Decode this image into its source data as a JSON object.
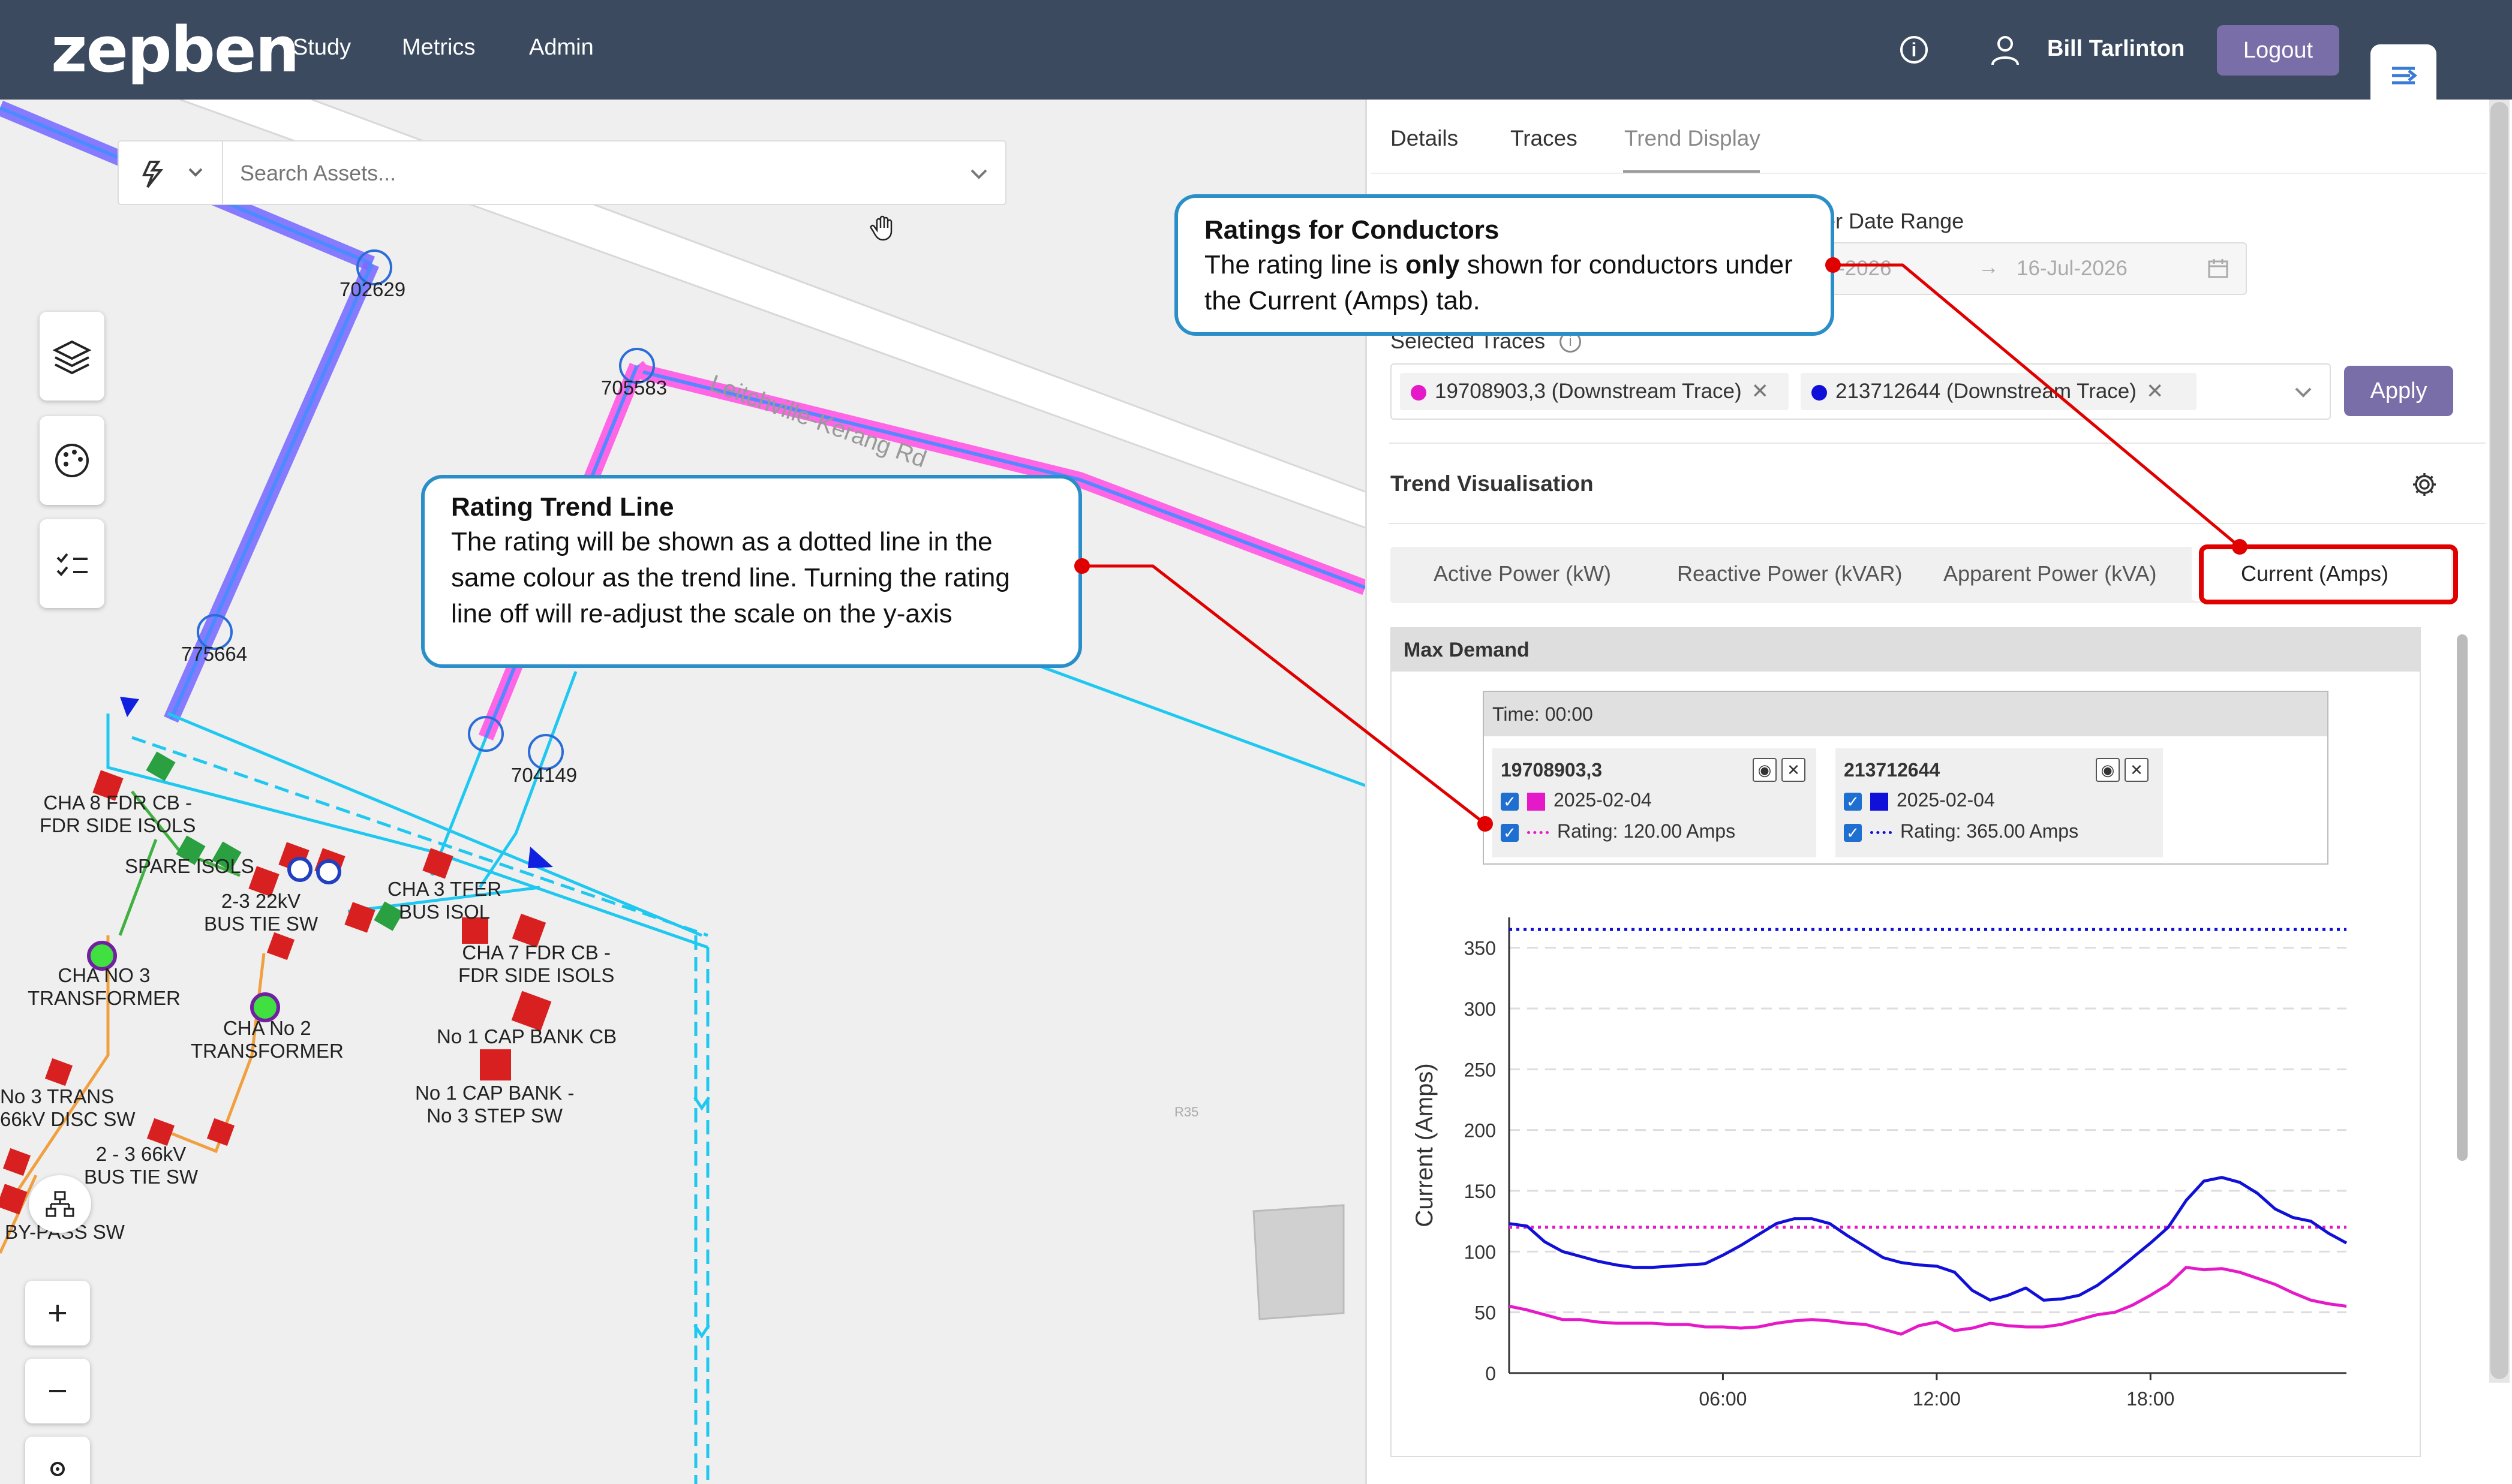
{
  "app": {
    "logo": "zepben",
    "nav": [
      "Study",
      "Metrics",
      "Admin"
    ],
    "user": "Bill Tarlinton",
    "logout_label": "Logout"
  },
  "map": {
    "search_placeholder": "Search Assets...",
    "road_name": "Leitchville-Kerang Rd",
    "labels": {
      "n702629": "702629",
      "n705583": "705583",
      "n775664": "775664",
      "n704149": "704149",
      "cha8": "CHA 8 FDR CB -\nFDR SIDE ISOLS",
      "spare": "SPARE ISOLS",
      "bus22": "2-3 22kV\nBUS TIE SW",
      "cha3tfer": "CHA 3 TFER\nBUS ISOL",
      "cha7": "CHA 7 FDR CB -\nFDR SIDE ISOLS",
      "chano3": "CHA NO 3\nTRANSFORMER",
      "chano2": "CHA No 2\nTRANSFORMER",
      "cap1": "No 1 CAP BANK CB",
      "cap1step": "No 1 CAP BANK -\nNo 3 STEP SW",
      "no3trans": "No 3 TRANS\n66kV DISC SW",
      "bus66": "2 - 3 66kV\nBUS TIE SW",
      "bypass": "BY-PASS SW",
      "r35": "R35"
    }
  },
  "panel": {
    "tabs": [
      "Details",
      "Traces",
      "Trend Display"
    ],
    "date_range_label": "er Date Range",
    "date_start": "-2026",
    "date_end": "16-Jul-2026",
    "selected_traces_label": "Selected Traces",
    "traces": [
      {
        "label": "19708903,3 (Downstream Trace)",
        "color": "#e619c8"
      },
      {
        "label": "213712644 (Downstream Trace)",
        "color": "#1010d8"
      }
    ],
    "apply_label": "Apply",
    "trend_vis_label": "Trend Visualisation",
    "metric_tabs": [
      "Active Power (kW)",
      "Reactive Power (kVAR)",
      "Apparent Power (kVA)",
      "Current (Amps)"
    ],
    "max_demand_label": "Max Demand",
    "tooltip": {
      "time": "Time: 00:00",
      "cards": [
        {
          "name": "19708903,3",
          "date": "2025-02-04",
          "rating": "Rating: 120.00 Amps",
          "color": "#e619c8"
        },
        {
          "name": "213712644",
          "date": "2025-02-04",
          "rating": "Rating: 365.00 Amps",
          "color": "#1010d8"
        }
      ]
    }
  },
  "callouts": {
    "ratings_title": "Ratings for Conductors",
    "ratings_body_1": "The rating line is ",
    "ratings_body_bold": "only",
    "ratings_body_2": " shown for conductors under the Current (Amps) tab.",
    "trend_title": "Rating Trend Line",
    "trend_body": "The rating will be shown as a dotted line in the same colour as the trend line. Turning the rating line off will re-adjust the scale on the y-axis"
  },
  "chart_data": {
    "type": "line",
    "ylabel": "Current (Amps)",
    "xlabel": "",
    "ylim": [
      0,
      375
    ],
    "yticks": [
      0,
      50,
      100,
      150,
      200,
      250,
      300,
      350
    ],
    "xticks": [
      {
        "hour": 6,
        "label": "06:00"
      },
      {
        "hour": 12,
        "label": "12:00"
      },
      {
        "hour": 18,
        "label": "18:00"
      }
    ],
    "x_hours": [
      0,
      0.5,
      1,
      1.5,
      2,
      2.5,
      3,
      3.5,
      4,
      4.5,
      5,
      5.5,
      6,
      6.5,
      7,
      7.5,
      8,
      8.5,
      9,
      9.5,
      10,
      10.5,
      11,
      11.5,
      12,
      12.5,
      13,
      13.5,
      14,
      14.5,
      15,
      15.5,
      16,
      16.5,
      17,
      17.5,
      18,
      18.5,
      19,
      19.5,
      20,
      20.5,
      21,
      21.5,
      22,
      22.5,
      23,
      23.5
    ],
    "series": [
      {
        "name": "19708903,3",
        "color": "#e619c8",
        "rating": 120,
        "values": [
          55,
          52,
          48,
          44,
          44,
          42,
          41,
          41,
          41,
          40,
          40,
          38,
          38,
          37,
          38,
          41,
          43,
          44,
          43,
          41,
          40,
          36,
          32,
          39,
          42,
          35,
          37,
          41,
          39,
          38,
          38,
          40,
          44,
          48,
          50,
          56,
          64,
          73,
          87,
          85,
          86,
          83,
          78,
          73,
          66,
          60,
          57,
          55
        ]
      },
      {
        "name": "213712644",
        "color": "#1010d8",
        "rating": 365,
        "values": [
          123,
          121,
          108,
          100,
          96,
          92,
          89,
          87,
          87,
          88,
          89,
          90,
          97,
          105,
          114,
          123,
          127,
          127,
          123,
          113,
          104,
          95,
          91,
          89,
          88,
          83,
          68,
          60,
          64,
          70,
          60,
          61,
          64,
          72,
          83,
          95,
          107,
          120,
          142,
          158,
          161,
          157,
          148,
          135,
          128,
          125,
          115,
          107
        ]
      }
    ]
  }
}
